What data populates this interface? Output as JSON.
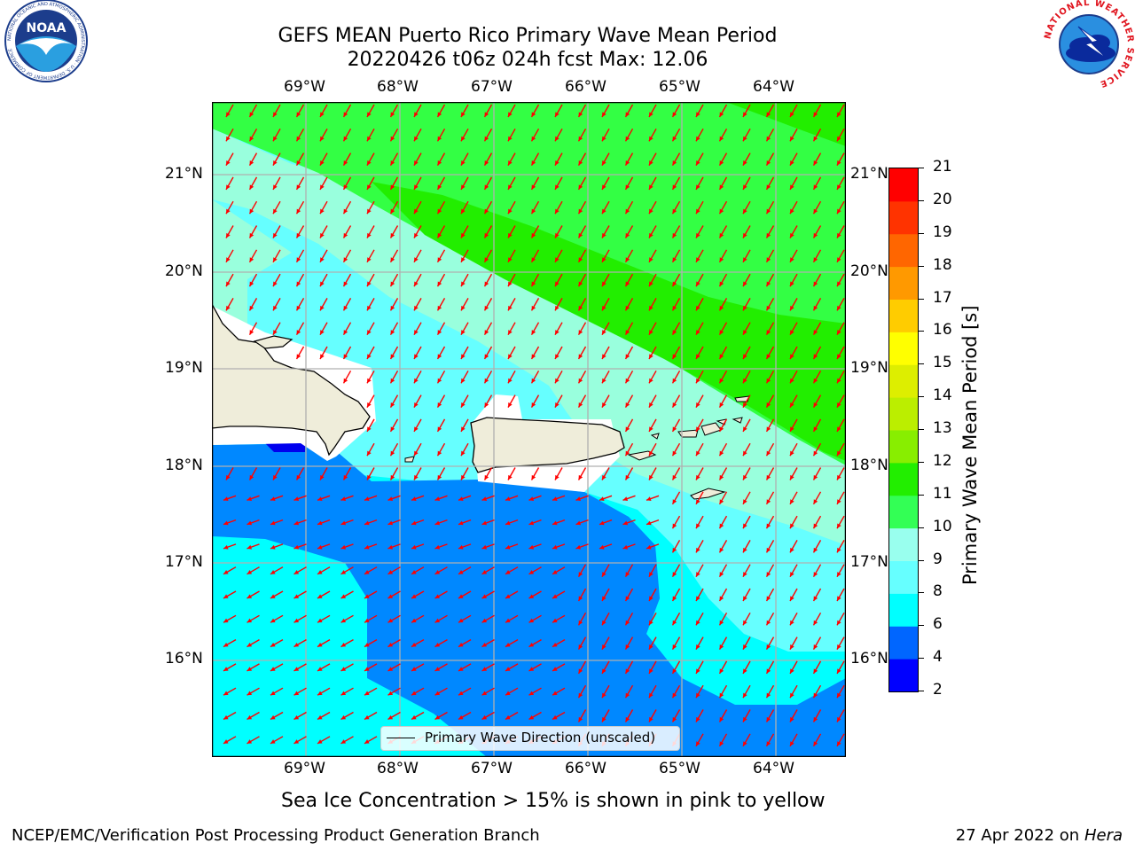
{
  "header": {
    "title_line1": "GEFS MEAN Puerto Rico Primary Wave Mean Period",
    "title_line2": "20220426 t06z 024h fcst   Max: 12.06"
  },
  "logos": {
    "left": "NOAA",
    "left_ring": "NATIONAL OCEANIC AND ATMOSPHERIC ADMINISTRATION · U.S. DEPARTMENT OF COMMERCE",
    "right_ring": "NATIONAL WEATHER SERVICE"
  },
  "map": {
    "lon_ticks": [
      "69°W",
      "68°W",
      "67°W",
      "66°W",
      "65°W",
      "64°W"
    ],
    "lat_ticks": [
      "21°N",
      "20°N",
      "19°N",
      "18°N",
      "17°N",
      "16°N"
    ],
    "legend_label": "Primary Wave Direction (unscaled)",
    "arrow_color": "#ff0000",
    "land_color": "#efedda"
  },
  "colorbar": {
    "label": "Primary Wave Mean Period [s]",
    "ticks": [
      "2",
      "4",
      "6",
      "8",
      "9",
      "10",
      "11",
      "12",
      "13",
      "14",
      "15",
      "16",
      "17",
      "18",
      "19",
      "20",
      "21"
    ],
    "colors": [
      "#0000ff",
      "#0066ff",
      "#00ffff",
      "#66ffff",
      "#99ffee",
      "#33ff55",
      "#22ee00",
      "#88ee00",
      "#bbee00",
      "#ddee00",
      "#ffff00",
      "#ffcc00",
      "#ff9900",
      "#ff6600",
      "#ff3300",
      "#ff0000"
    ]
  },
  "caption": "Sea Ice Concentration > 15% is shown in pink to yellow",
  "footer": {
    "left": "NCEP/EMC/Verification Post Processing Product Generation Branch",
    "right_date": "27 Apr 2022 on ",
    "right_host": "Hera"
  }
}
